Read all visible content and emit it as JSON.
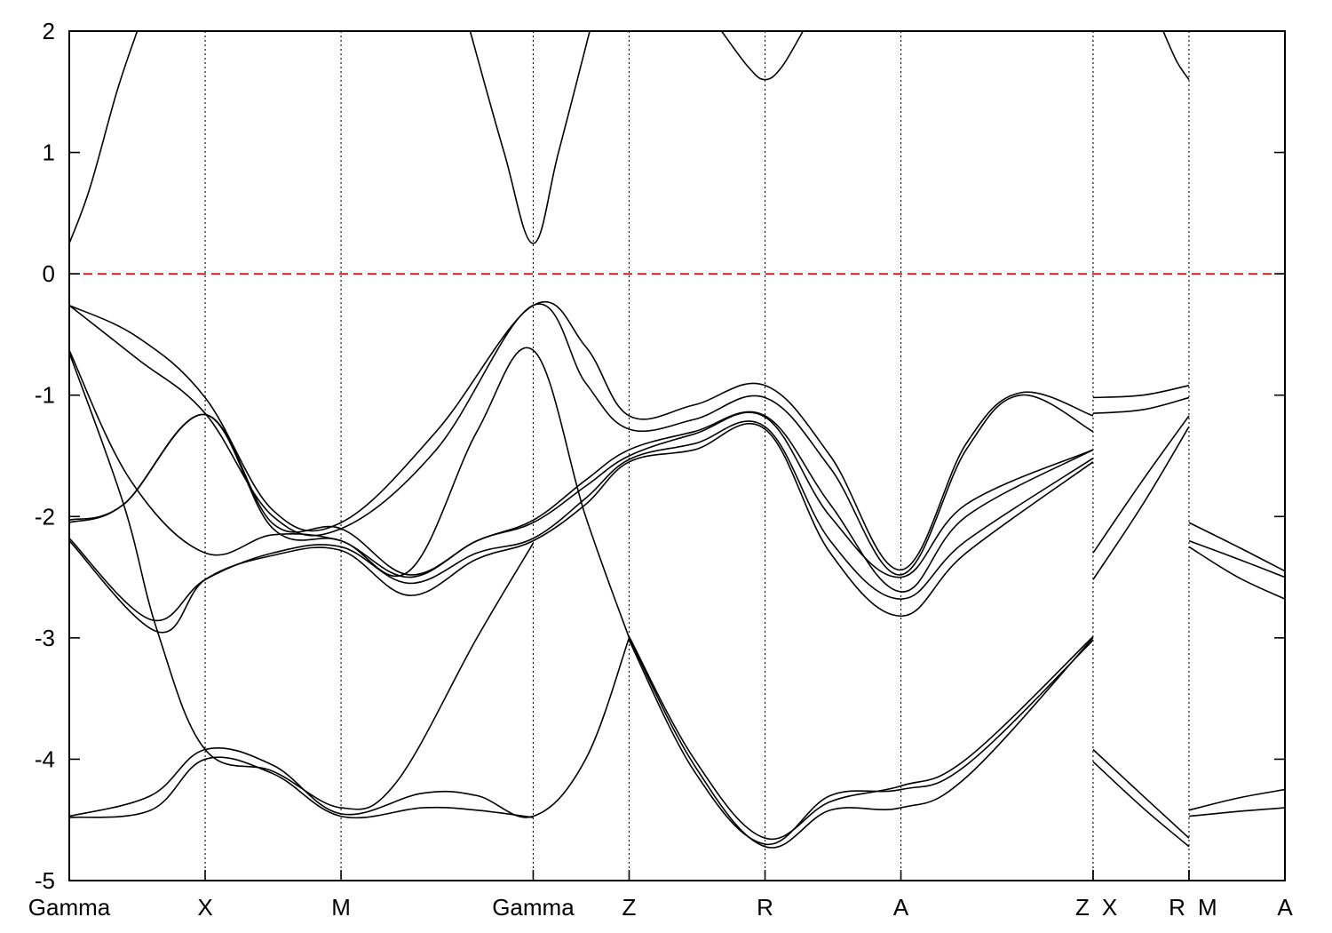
{
  "chart_data": {
    "type": "line",
    "title": "",
    "xlabel": "",
    "ylabel": "",
    "ylim": [
      -5,
      2
    ],
    "yticks": [
      -5,
      -4,
      -3,
      -2,
      -1,
      0,
      1,
      2
    ],
    "reference_line": {
      "y": 0,
      "color": "#e00000",
      "style": "dashed"
    },
    "kpath": [
      {
        "label": "Gamma",
        "x": 0.0
      },
      {
        "label": "X",
        "x": 1.0
      },
      {
        "label": "M",
        "x": 2.0
      },
      {
        "label": "Gamma",
        "x": 3.414
      },
      {
        "label": "Z",
        "x": 4.12
      },
      {
        "label": "R",
        "x": 5.12
      },
      {
        "label": "A",
        "x": 6.12
      },
      {
        "label": "Z",
        "x": 7.534
      },
      {
        "label": "X",
        "x": 7.534
      },
      {
        "label": "R",
        "x": 8.24
      },
      {
        "label": "M",
        "x": 8.24
      },
      {
        "label": "A",
        "x": 8.946
      }
    ],
    "segment_breaks": [
      7.534,
      8.24
    ],
    "series": [
      {
        "points": [
          [
            0.0,
            0.25
          ],
          [
            0.15,
            0.7
          ],
          [
            0.35,
            1.5
          ],
          [
            0.5,
            2.0
          ]
        ]
      },
      {
        "points": [
          [
            2.95,
            2.0
          ],
          [
            3.2,
            1.0
          ],
          [
            3.414,
            0.25
          ],
          [
            3.6,
            1.0
          ],
          [
            3.83,
            2.0
          ]
        ]
      },
      {
        "points": [
          [
            4.8,
            2.0
          ],
          [
            5.0,
            1.7
          ],
          [
            5.12,
            1.6
          ],
          [
            5.24,
            1.7
          ],
          [
            5.4,
            2.0
          ]
        ]
      },
      {
        "points": [
          [
            8.05,
            2.0
          ],
          [
            8.15,
            1.75
          ],
          [
            8.24,
            1.6
          ]
        ]
      },
      {
        "points": [
          [
            0.0,
            -0.26
          ],
          [
            0.5,
            -0.52
          ],
          [
            1.0,
            -1.02
          ],
          [
            1.5,
            -1.95
          ],
          [
            2.0,
            -2.05
          ],
          [
            2.7,
            -1.3
          ],
          [
            3.414,
            -0.26
          ],
          [
            3.8,
            -0.6
          ],
          [
            4.12,
            -1.17
          ],
          [
            4.6,
            -1.08
          ],
          [
            5.12,
            -0.92
          ],
          [
            5.6,
            -1.5
          ],
          [
            6.12,
            -2.44
          ],
          [
            6.6,
            -1.4
          ],
          [
            7.0,
            -0.98
          ],
          [
            7.534,
            -1.17
          ]
        ]
      },
      {
        "points": [
          [
            0.0,
            -0.26
          ],
          [
            0.5,
            -0.7
          ],
          [
            1.0,
            -1.15
          ],
          [
            1.5,
            -2.0
          ],
          [
            2.0,
            -2.1
          ],
          [
            2.7,
            -1.45
          ],
          [
            3.414,
            -0.26
          ],
          [
            3.8,
            -0.9
          ],
          [
            4.12,
            -1.28
          ],
          [
            4.6,
            -1.2
          ],
          [
            5.12,
            -1.02
          ],
          [
            5.6,
            -1.6
          ],
          [
            6.12,
            -2.48
          ],
          [
            6.6,
            -1.45
          ],
          [
            7.0,
            -1.0
          ],
          [
            7.534,
            -1.3
          ]
        ]
      },
      {
        "points": [
          [
            0.0,
            -0.63
          ],
          [
            0.45,
            -1.7
          ],
          [
            1.0,
            -2.3
          ],
          [
            1.5,
            -2.15
          ],
          [
            2.0,
            -2.2
          ],
          [
            2.5,
            -2.45
          ],
          [
            3.0,
            -1.3
          ],
          [
            3.414,
            -0.63
          ],
          [
            3.8,
            -2.0
          ],
          [
            4.12,
            -3.0
          ]
        ]
      },
      {
        "points": [
          [
            0.0,
            -2.03
          ],
          [
            0.4,
            -1.9
          ],
          [
            1.0,
            -1.16
          ],
          [
            1.5,
            -2.06
          ],
          [
            2.0,
            -2.1
          ],
          [
            2.5,
            -2.48
          ],
          [
            3.0,
            -2.2
          ],
          [
            3.414,
            -2.03
          ],
          [
            3.8,
            -1.7
          ],
          [
            4.12,
            -1.45
          ],
          [
            4.6,
            -1.3
          ],
          [
            5.12,
            -1.17
          ],
          [
            5.6,
            -1.9
          ],
          [
            6.12,
            -2.62
          ],
          [
            6.6,
            -2.0
          ],
          [
            7.534,
            -1.45
          ]
        ]
      },
      {
        "points": [
          [
            0.0,
            -2.18
          ],
          [
            0.6,
            -2.85
          ],
          [
            1.0,
            -2.52
          ],
          [
            1.5,
            -2.3
          ],
          [
            2.0,
            -2.25
          ],
          [
            2.5,
            -2.55
          ],
          [
            3.0,
            -2.3
          ],
          [
            3.414,
            -2.18
          ],
          [
            3.8,
            -1.85
          ],
          [
            4.12,
            -1.53
          ],
          [
            4.6,
            -1.4
          ],
          [
            5.12,
            -1.26
          ],
          [
            5.6,
            -2.2
          ],
          [
            6.12,
            -2.68
          ],
          [
            6.6,
            -2.2
          ],
          [
            7.534,
            -1.52
          ]
        ]
      },
      {
        "points": [
          [
            0.0,
            -2.2
          ],
          [
            0.65,
            -2.95
          ],
          [
            1.0,
            -2.52
          ],
          [
            1.5,
            -2.32
          ],
          [
            2.0,
            -2.28
          ],
          [
            2.5,
            -2.65
          ],
          [
            3.0,
            -2.35
          ],
          [
            3.414,
            -2.2
          ],
          [
            3.8,
            -1.9
          ],
          [
            4.12,
            -1.55
          ],
          [
            4.6,
            -1.45
          ],
          [
            5.12,
            -1.28
          ],
          [
            5.6,
            -2.3
          ],
          [
            6.12,
            -2.82
          ],
          [
            6.6,
            -2.3
          ],
          [
            7.534,
            -1.55
          ]
        ]
      },
      {
        "points": [
          [
            0.0,
            -2.05
          ],
          [
            0.4,
            -1.9
          ],
          [
            1.0,
            -1.16
          ],
          [
            1.5,
            -2.1
          ],
          [
            2.0,
            -2.2
          ],
          [
            2.5,
            -2.5
          ],
          [
            3.0,
            -2.2
          ],
          [
            3.414,
            -2.05
          ],
          [
            3.8,
            -1.75
          ],
          [
            4.12,
            -1.5
          ],
          [
            4.6,
            -1.32
          ],
          [
            5.12,
            -1.18
          ],
          [
            5.6,
            -2.0
          ],
          [
            6.12,
            -2.5
          ],
          [
            6.6,
            -1.9
          ],
          [
            7.534,
            -1.45
          ]
        ]
      },
      {
        "points": [
          [
            0.0,
            -0.65
          ],
          [
            0.4,
            -1.9
          ],
          [
            0.65,
            -2.95
          ],
          [
            1.0,
            -3.92
          ],
          [
            1.5,
            -4.1
          ],
          [
            2.0,
            -4.4
          ],
          [
            2.4,
            -4.2
          ],
          [
            3.0,
            -3.0
          ],
          [
            3.414,
            -2.22
          ]
        ]
      },
      {
        "points": [
          [
            0.0,
            -4.47
          ],
          [
            0.6,
            -4.3
          ],
          [
            1.0,
            -3.92
          ],
          [
            1.5,
            -4.05
          ],
          [
            2.0,
            -4.45
          ],
          [
            2.6,
            -4.28
          ],
          [
            3.0,
            -4.3
          ],
          [
            3.414,
            -4.47
          ],
          [
            3.8,
            -4.0
          ],
          [
            4.12,
            -3.0
          ]
        ]
      },
      {
        "points": [
          [
            0.0,
            -4.48
          ],
          [
            0.6,
            -4.42
          ],
          [
            1.0,
            -4.0
          ],
          [
            1.5,
            -4.12
          ],
          [
            2.0,
            -4.47
          ],
          [
            2.6,
            -4.4
          ],
          [
            3.0,
            -4.42
          ],
          [
            3.414,
            -4.48
          ]
        ]
      },
      {
        "points": [
          [
            4.12,
            -2.99
          ],
          [
            4.6,
            -4.0
          ],
          [
            5.12,
            -4.65
          ],
          [
            5.6,
            -4.35
          ],
          [
            6.12,
            -4.22
          ],
          [
            6.6,
            -4.0
          ],
          [
            7.534,
            -2.99
          ]
        ]
      },
      {
        "points": [
          [
            4.12,
            -3.0
          ],
          [
            4.6,
            -4.05
          ],
          [
            5.12,
            -4.72
          ],
          [
            5.6,
            -4.42
          ],
          [
            6.12,
            -4.4
          ],
          [
            6.6,
            -4.15
          ],
          [
            7.534,
            -3.0
          ]
        ]
      },
      {
        "points": [
          [
            4.12,
            -3.02
          ],
          [
            4.6,
            -4.1
          ],
          [
            5.12,
            -4.7
          ],
          [
            5.6,
            -4.3
          ],
          [
            6.12,
            -4.25
          ],
          [
            6.6,
            -4.05
          ],
          [
            7.534,
            -3.02
          ]
        ]
      },
      {
        "points": [
          [
            7.534,
            -1.02
          ],
          [
            7.9,
            -1.0
          ],
          [
            8.24,
            -0.92
          ]
        ]
      },
      {
        "points": [
          [
            7.534,
            -1.15
          ],
          [
            7.9,
            -1.12
          ],
          [
            8.24,
            -1.02
          ]
        ]
      },
      {
        "points": [
          [
            7.534,
            -2.3
          ],
          [
            7.9,
            -1.7
          ],
          [
            8.24,
            -1.17
          ]
        ]
      },
      {
        "points": [
          [
            7.534,
            -2.52
          ],
          [
            7.9,
            -1.9
          ],
          [
            8.24,
            -1.26
          ]
        ]
      },
      {
        "points": [
          [
            7.534,
            -3.92
          ],
          [
            7.9,
            -4.3
          ],
          [
            8.24,
            -4.65
          ]
        ]
      },
      {
        "points": [
          [
            7.534,
            -4.02
          ],
          [
            7.9,
            -4.4
          ],
          [
            8.24,
            -4.72
          ]
        ]
      },
      {
        "points": [
          [
            8.24,
            -2.05
          ],
          [
            8.6,
            -2.25
          ],
          [
            8.946,
            -2.45
          ]
        ]
      },
      {
        "points": [
          [
            8.24,
            -2.2
          ],
          [
            8.6,
            -2.35
          ],
          [
            8.946,
            -2.5
          ]
        ]
      },
      {
        "points": [
          [
            8.24,
            -2.25
          ],
          [
            8.6,
            -2.5
          ],
          [
            8.946,
            -2.68
          ]
        ]
      },
      {
        "points": [
          [
            8.24,
            -4.42
          ],
          [
            8.6,
            -4.32
          ],
          [
            8.946,
            -4.25
          ]
        ]
      },
      {
        "points": [
          [
            8.24,
            -4.47
          ],
          [
            8.6,
            -4.43
          ],
          [
            8.946,
            -4.4
          ]
        ]
      }
    ]
  }
}
